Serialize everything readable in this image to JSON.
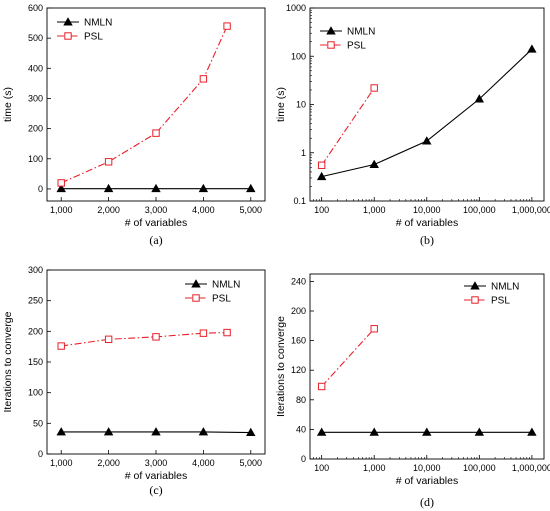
{
  "chart_data": [
    {
      "type": "line",
      "panel": "(a)",
      "xlabel": "# of variables",
      "ylabel": "time (s)",
      "xscale": "linear",
      "yscale": "linear",
      "xlim": [
        700,
        5300
      ],
      "ylim": [
        -40,
        600
      ],
      "xticks": [
        1000,
        2000,
        3000,
        4000,
        5000
      ],
      "xtick_labels": [
        "1,000",
        "2,000",
        "3,000",
        "4,000",
        "5,000"
      ],
      "yticks": [
        0,
        100,
        200,
        300,
        400,
        500,
        600
      ],
      "ytick_labels": [
        "0",
        "100",
        "200",
        "300",
        "400",
        "500",
        "600"
      ],
      "legend_position": "top-left",
      "series": [
        {
          "name": "NMLN",
          "color": "#000000",
          "marker": "triangle",
          "dash": "solid",
          "x": [
            1000,
            2000,
            3000,
            4000,
            5000
          ],
          "y": [
            1,
            1,
            1,
            1,
            1
          ]
        },
        {
          "name": "PSL",
          "color": "#e8202a",
          "marker": "square",
          "dash": "dashdot",
          "x": [
            1000,
            2000,
            3000,
            4000,
            4500
          ],
          "y": [
            20,
            90,
            185,
            365,
            540
          ]
        }
      ]
    },
    {
      "type": "line",
      "panel": "(b)",
      "xlabel": "# of variables",
      "ylabel": "time (s)",
      "xscale": "log",
      "yscale": "log",
      "xlim": [
        60,
        1700000
      ],
      "ylim": [
        0.1,
        1000
      ],
      "xticks": [
        100,
        1000,
        10000,
        100000,
        1000000
      ],
      "xtick_labels": [
        "100",
        "1,000",
        "10,000",
        "100,000",
        "1,000,000"
      ],
      "yticks": [
        0.1,
        1,
        10,
        100,
        1000
      ],
      "ytick_labels": [
        "0.1",
        "1",
        "10",
        "100",
        "1000"
      ],
      "legend_position": "top-left",
      "series": [
        {
          "name": "NMLN",
          "color": "#000000",
          "marker": "triangle",
          "dash": "solid",
          "x": [
            100,
            1000,
            10000,
            100000,
            1000000
          ],
          "y": [
            0.32,
            0.57,
            1.75,
            13,
            140
          ]
        },
        {
          "name": "PSL",
          "color": "#e8202a",
          "marker": "square",
          "dash": "dashdot",
          "x": [
            100,
            1000
          ],
          "y": [
            0.55,
            22
          ]
        }
      ]
    },
    {
      "type": "line",
      "panel": "(c)",
      "xlabel": "# of variables",
      "ylabel": "Iterations to converge",
      "xscale": "linear",
      "yscale": "linear",
      "xlim": [
        700,
        5300
      ],
      "ylim": [
        0,
        300
      ],
      "xticks": [
        1000,
        2000,
        3000,
        4000,
        5000
      ],
      "xtick_labels": [
        "1,000",
        "2,000",
        "3,000",
        "4,000",
        "5,000"
      ],
      "yticks": [
        0,
        50,
        100,
        150,
        200,
        250,
        300
      ],
      "ytick_labels": [
        "0",
        "50",
        "100",
        "150",
        "200",
        "250",
        "300"
      ],
      "legend_position": "top-right",
      "series": [
        {
          "name": "NMLN",
          "color": "#000000",
          "marker": "triangle",
          "dash": "solid",
          "x": [
            1000,
            2000,
            3000,
            4000,
            5000
          ],
          "y": [
            36,
            36,
            36,
            36,
            35
          ]
        },
        {
          "name": "PSL",
          "color": "#e8202a",
          "marker": "square",
          "dash": "dashdot",
          "x": [
            1000,
            2000,
            3000,
            4000,
            4500
          ],
          "y": [
            176,
            187,
            191,
            197,
            198
          ]
        }
      ]
    },
    {
      "type": "line",
      "panel": "(d)",
      "xlabel": "# of variables",
      "ylabel": "Iterations to converge",
      "xscale": "log",
      "yscale": "linear",
      "xlim": [
        60,
        1700000
      ],
      "ylim": [
        0,
        250
      ],
      "xticks": [
        100,
        1000,
        10000,
        100000,
        1000000
      ],
      "xtick_labels": [
        "100",
        "1,000",
        "10,000",
        "100,000",
        "1,000,000"
      ],
      "yticks": [
        0,
        40,
        80,
        120,
        160,
        200,
        240
      ],
      "ytick_labels": [
        "0",
        "40",
        "80",
        "120",
        "160",
        "200",
        "240"
      ],
      "legend_position": "top-right",
      "series": [
        {
          "name": "NMLN",
          "color": "#000000",
          "marker": "triangle",
          "dash": "solid",
          "x": [
            100,
            1000,
            10000,
            100000,
            1000000
          ],
          "y": [
            36,
            36,
            36,
            36,
            36
          ]
        },
        {
          "name": "PSL",
          "color": "#e8202a",
          "marker": "square",
          "dash": "dashdot",
          "x": [
            100,
            1000
          ],
          "y": [
            98,
            176
          ]
        }
      ]
    }
  ]
}
